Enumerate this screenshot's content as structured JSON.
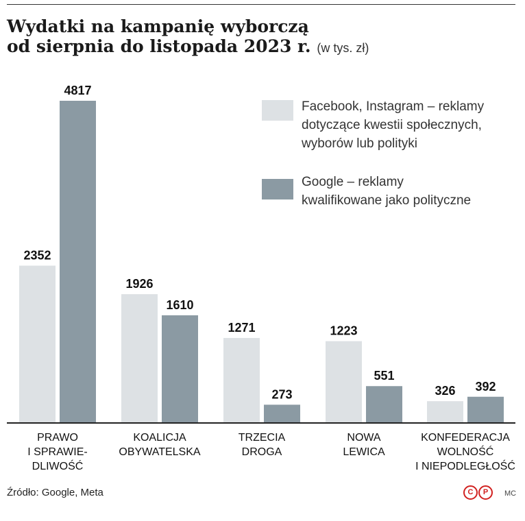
{
  "title_line1": "Wydatki na kampanię wyborczą",
  "title_line2": "od sierpnia do listopada 2023 r.",
  "title_unit": "(w tys. zł)",
  "source": "Źródło: Google, Meta",
  "author": "MC",
  "logo_letters": [
    "C",
    "P"
  ],
  "colors": {
    "facebook": "#dde1e4",
    "google": "#8b9aa3",
    "axis": "#222222",
    "logo": "#d1201f"
  },
  "legend": [
    {
      "lines": [
        "Facebook, Instagram – reklamy",
        "dotyczące kwestii społecznych,",
        "wyborów lub polityki"
      ]
    },
    {
      "lines": [
        "Google – reklamy",
        "kwalifikowane jako polityczne"
      ]
    }
  ],
  "chart_data": {
    "type": "bar",
    "categories": [
      [
        "PRAWO",
        "I SPRAWIE-",
        "DLIWOŚĆ"
      ],
      [
        "KOALICJA",
        "OBYWATELSKA"
      ],
      [
        "TRZECIA",
        "DROGA"
      ],
      [
        "NOWA",
        "LEWICA"
      ],
      [
        "KONFEDERACJA",
        "WOLNOŚĆ",
        "I NIEPODLEGŁOŚĆ"
      ]
    ],
    "series": [
      {
        "name": "Facebook, Instagram – reklamy dotyczące kwestii społecznych, wyborów lub polityki",
        "values": [
          2352,
          1926,
          1271,
          1223,
          326
        ]
      },
      {
        "name": "Google – reklamy kwalifikowane jako polityczne",
        "values": [
          4817,
          1610,
          273,
          551,
          392
        ]
      }
    ],
    "ylim": [
      0,
      4817
    ],
    "data_labels": true,
    "legend_position": "top-right",
    "grid": false
  }
}
